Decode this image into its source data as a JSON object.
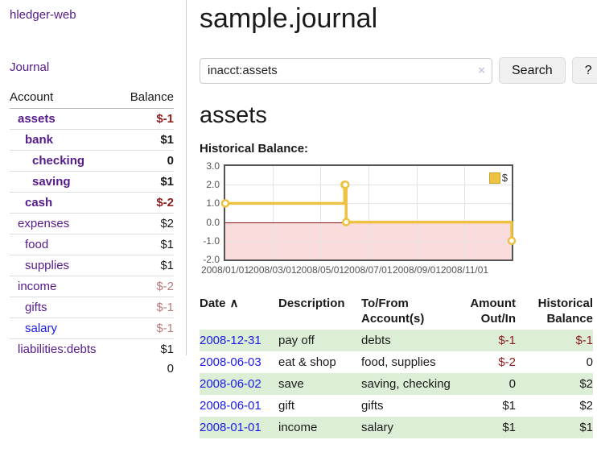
{
  "sidebar": {
    "app_title": "hledger-web",
    "journal_link": "Journal",
    "accounts_table": {
      "headers": [
        "Account",
        "Balance"
      ],
      "rows": [
        {
          "name": "assets",
          "indent": 0,
          "bold": true,
          "balance": "$-1",
          "negative": true
        },
        {
          "name": "bank",
          "indent": 1,
          "bold": true,
          "balance": "$1",
          "negative": false
        },
        {
          "name": "checking",
          "indent": 2,
          "bold": true,
          "balance": "0",
          "negative": false
        },
        {
          "name": "saving",
          "indent": 2,
          "bold": true,
          "balance": "$1",
          "negative": false
        },
        {
          "name": "cash",
          "indent": 1,
          "bold": true,
          "balance": "$-2",
          "negative": true
        },
        {
          "name": "expenses",
          "indent": 0,
          "bold": false,
          "balance": "$2",
          "negative": false
        },
        {
          "name": "food",
          "indent": 1,
          "bold": false,
          "balance": "$1",
          "negative": false
        },
        {
          "name": "supplies",
          "indent": 1,
          "bold": false,
          "balance": "$1",
          "negative": false
        },
        {
          "name": "income",
          "indent": 0,
          "bold": false,
          "balance": "$-2",
          "negative": true
        },
        {
          "name": "gifts",
          "indent": 1,
          "bold": false,
          "balance": "$-1",
          "negative": true
        },
        {
          "name": "salary",
          "indent": 1,
          "bold": false,
          "balance": "$-1",
          "negative": true,
          "blue": true
        },
        {
          "name": "liabilities:debts",
          "indent": 0,
          "bold": false,
          "balance": "$1",
          "negative": false
        }
      ],
      "total": "0"
    }
  },
  "header": {
    "title": "sample.journal"
  },
  "search": {
    "query": "inacct:assets",
    "clear_icon": "×",
    "search_label": "Search",
    "help_label": "?"
  },
  "account_page": {
    "heading": "assets",
    "chart_title": "Historical Balance:"
  },
  "chart_data": {
    "type": "line",
    "step": true,
    "title": "Historical Balance:",
    "series": [
      {
        "name": "$",
        "color": "#edc240",
        "points": [
          [
            "2008-01-01",
            1
          ],
          [
            "2008-06-01",
            2
          ],
          [
            "2008-06-02",
            2
          ],
          [
            "2008-06-03",
            0
          ],
          [
            "2008-12-31",
            -1
          ]
        ]
      }
    ],
    "x_domain": [
      "2008-01-01",
      "2008-12-31"
    ],
    "x_ticks": [
      "2008/01/01",
      "2008/03/01",
      "2008/05/01",
      "2008/07/01",
      "2008/09/01",
      "2008/11/01"
    ],
    "y_ticks": [
      3.0,
      2.0,
      1.0,
      0.0,
      -1.0,
      -2.0
    ],
    "y_tick_labels": [
      "3.0",
      "2.0",
      "1.0",
      "0.0",
      "-1.0",
      "-2.0"
    ],
    "ylim": [
      -2,
      3
    ],
    "grid": true,
    "legend_position": "top-right",
    "legend_label": "$",
    "colors": {
      "line": "#edc240",
      "negative_region": "#fbdcdc",
      "zero_line": "#8b1a1a",
      "grid": "#e4e4e4",
      "border": "#545454",
      "tick_text": "#545454"
    }
  },
  "register_table": {
    "headers": [
      "Date",
      "Description",
      "To/From Account(s)",
      "Amount Out/In",
      "Historical Balance"
    ],
    "sort_indicator": "∧",
    "rows": [
      {
        "date": "2008-12-31",
        "description": "pay off",
        "accounts": "debts",
        "amount": "$-1",
        "amount_negative": true,
        "balance": "$-1",
        "balance_negative": true
      },
      {
        "date": "2008-06-03",
        "description": "eat & shop",
        "accounts": "food, supplies",
        "amount": "$-2",
        "amount_negative": true,
        "balance": "0",
        "balance_negative": false
      },
      {
        "date": "2008-06-02",
        "description": "save",
        "accounts": "saving, checking",
        "amount": "0",
        "amount_negative": false,
        "balance": "$2",
        "balance_negative": false
      },
      {
        "date": "2008-06-01",
        "description": "gift",
        "accounts": "gifts",
        "amount": "$1",
        "amount_negative": false,
        "balance": "$2",
        "balance_negative": false
      },
      {
        "date": "2008-01-01",
        "description": "income",
        "accounts": "salary",
        "amount": "$1",
        "amount_negative": false,
        "balance": "$1",
        "balance_negative": false
      }
    ]
  },
  "colors": {
    "link_purple": "#551a8b",
    "link_blue": "#1a1ae8",
    "negative_red": "#8b1d1d",
    "negative_muted_red": "#b97a7a",
    "row_stripe_green": "#ddeed6",
    "chart_gold": "#edc240"
  }
}
